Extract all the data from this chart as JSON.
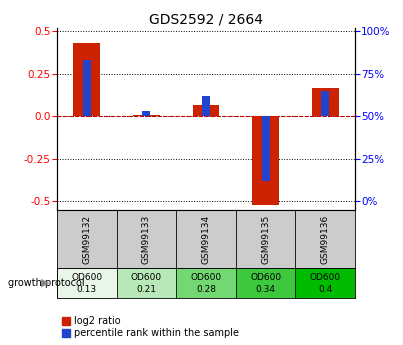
{
  "title": "GDS2592 / 2664",
  "samples": [
    "GSM99132",
    "GSM99133",
    "GSM99134",
    "GSM99135",
    "GSM99136"
  ],
  "log2_ratios": [
    0.43,
    0.01,
    0.07,
    -0.52,
    0.17
  ],
  "percentile_ranks": [
    83,
    53,
    62,
    12,
    65
  ],
  "od_labels": [
    [
      "OD600",
      "0.13"
    ],
    [
      "OD600",
      "0.21"
    ],
    [
      "OD600",
      "0.28"
    ],
    [
      "OD600",
      "0.34"
    ],
    [
      "OD600",
      "0.4"
    ]
  ],
  "od_colors": [
    "#e8f5e9",
    "#b8e8b8",
    "#72d872",
    "#3ec83e",
    "#00bb00"
  ],
  "bar_width": 0.45,
  "ylim": [
    -0.55,
    0.52
  ],
  "yticks_left": [
    -0.5,
    -0.25,
    0.0,
    0.25,
    0.5
  ],
  "yticks_right": [
    0,
    25,
    50,
    75,
    100
  ],
  "red_color": "#cc2200",
  "blue_color": "#2244cc",
  "bg_color": "#ffffff",
  "zero_line_color": "#cc0000",
  "legend_red": "log2 ratio",
  "legend_blue": "percentile rank within the sample",
  "sample_bg": "#cccccc",
  "growth_protocol_text": "growth protocol"
}
